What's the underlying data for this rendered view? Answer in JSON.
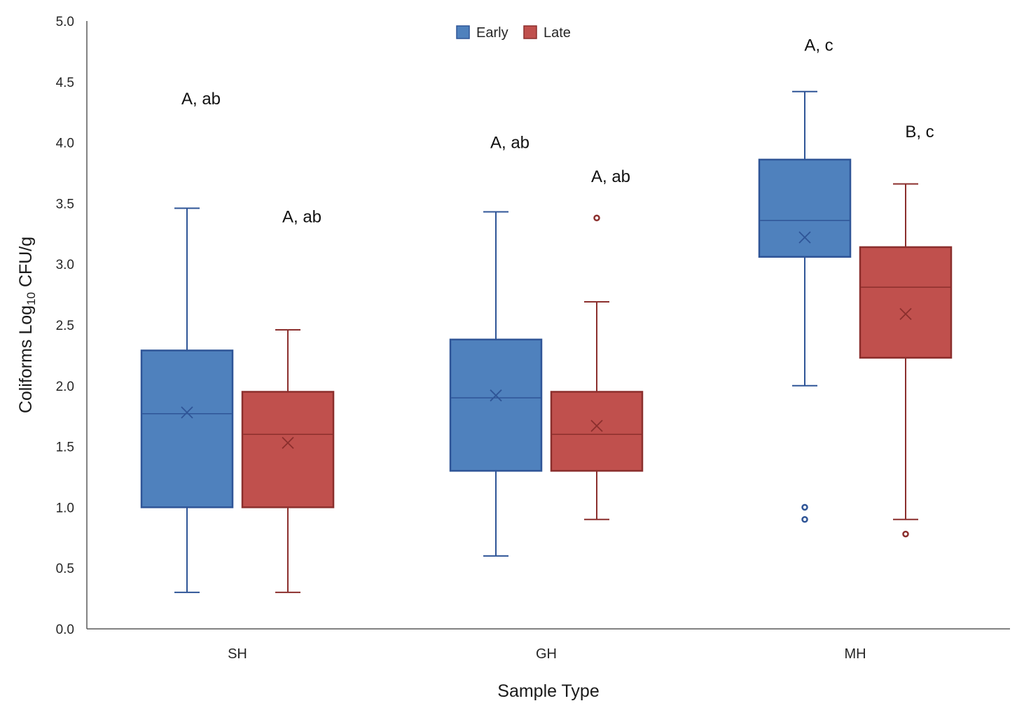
{
  "chart_data": {
    "type": "box",
    "xlabel": "Sample Type",
    "ylabel": {
      "main": "Coliforms Log",
      "subscript": "10",
      "unit": " CFU/g"
    },
    "ylim": [
      0,
      5
    ],
    "yticks": [
      0,
      0.5,
      1,
      1.5,
      2,
      2.5,
      3,
      3.5,
      4,
      4.5,
      5
    ],
    "yticks_labels": [
      "0.0",
      "0.5",
      "1.0",
      "1.5",
      "2.0",
      "2.5",
      "3.0",
      "3.5",
      "4.0",
      "4.5",
      "5.0"
    ],
    "grid": false,
    "legend_position": "top-center",
    "categories": [
      "SH",
      "GH",
      "MH"
    ],
    "series": [
      {
        "name": "Early",
        "color": "#4f81bd",
        "stroke": "#2f5597",
        "boxes": [
          {
            "min": 0.3,
            "q1": 1.0,
            "median": 1.77,
            "q3": 2.29,
            "max": 3.46,
            "mean": 1.78,
            "outliers": []
          },
          {
            "min": 0.6,
            "q1": 1.3,
            "median": 1.9,
            "q3": 2.38,
            "max": 3.43,
            "mean": 1.92,
            "outliers": []
          },
          {
            "min": 2.0,
            "q1": 3.06,
            "median": 3.36,
            "q3": 3.86,
            "max": 4.42,
            "mean": 3.22,
            "outliers": [
              1.0,
              0.9
            ]
          }
        ]
      },
      {
        "name": "Late",
        "color": "#c0504d",
        "stroke": "#8b2f2d",
        "boxes": [
          {
            "min": 0.3,
            "q1": 1.0,
            "median": 1.6,
            "q3": 1.95,
            "max": 2.46,
            "mean": 1.53,
            "outliers": []
          },
          {
            "min": 0.9,
            "q1": 1.3,
            "median": 1.6,
            "q3": 1.95,
            "max": 2.69,
            "mean": 1.67,
            "outliers": [
              3.38
            ]
          },
          {
            "min": 0.9,
            "q1": 2.23,
            "median": 2.81,
            "q3": 3.14,
            "max": 3.66,
            "mean": 2.59,
            "outliers": [
              0.78
            ]
          }
        ]
      }
    ],
    "annotations": [
      {
        "category": 0,
        "series": 0,
        "text": "A, ab",
        "y": 4.36
      },
      {
        "category": 0,
        "series": 1,
        "text": "A, ab",
        "y": 3.39
      },
      {
        "category": 1,
        "series": 0,
        "text": "A, ab",
        "y": 4.0
      },
      {
        "category": 1,
        "series": 1,
        "text": "A, ab",
        "y": 3.72
      },
      {
        "category": 2,
        "series": 0,
        "text": "A, c",
        "y": 4.8
      },
      {
        "category": 2,
        "series": 1,
        "text": "B, c",
        "y": 4.09
      }
    ]
  }
}
